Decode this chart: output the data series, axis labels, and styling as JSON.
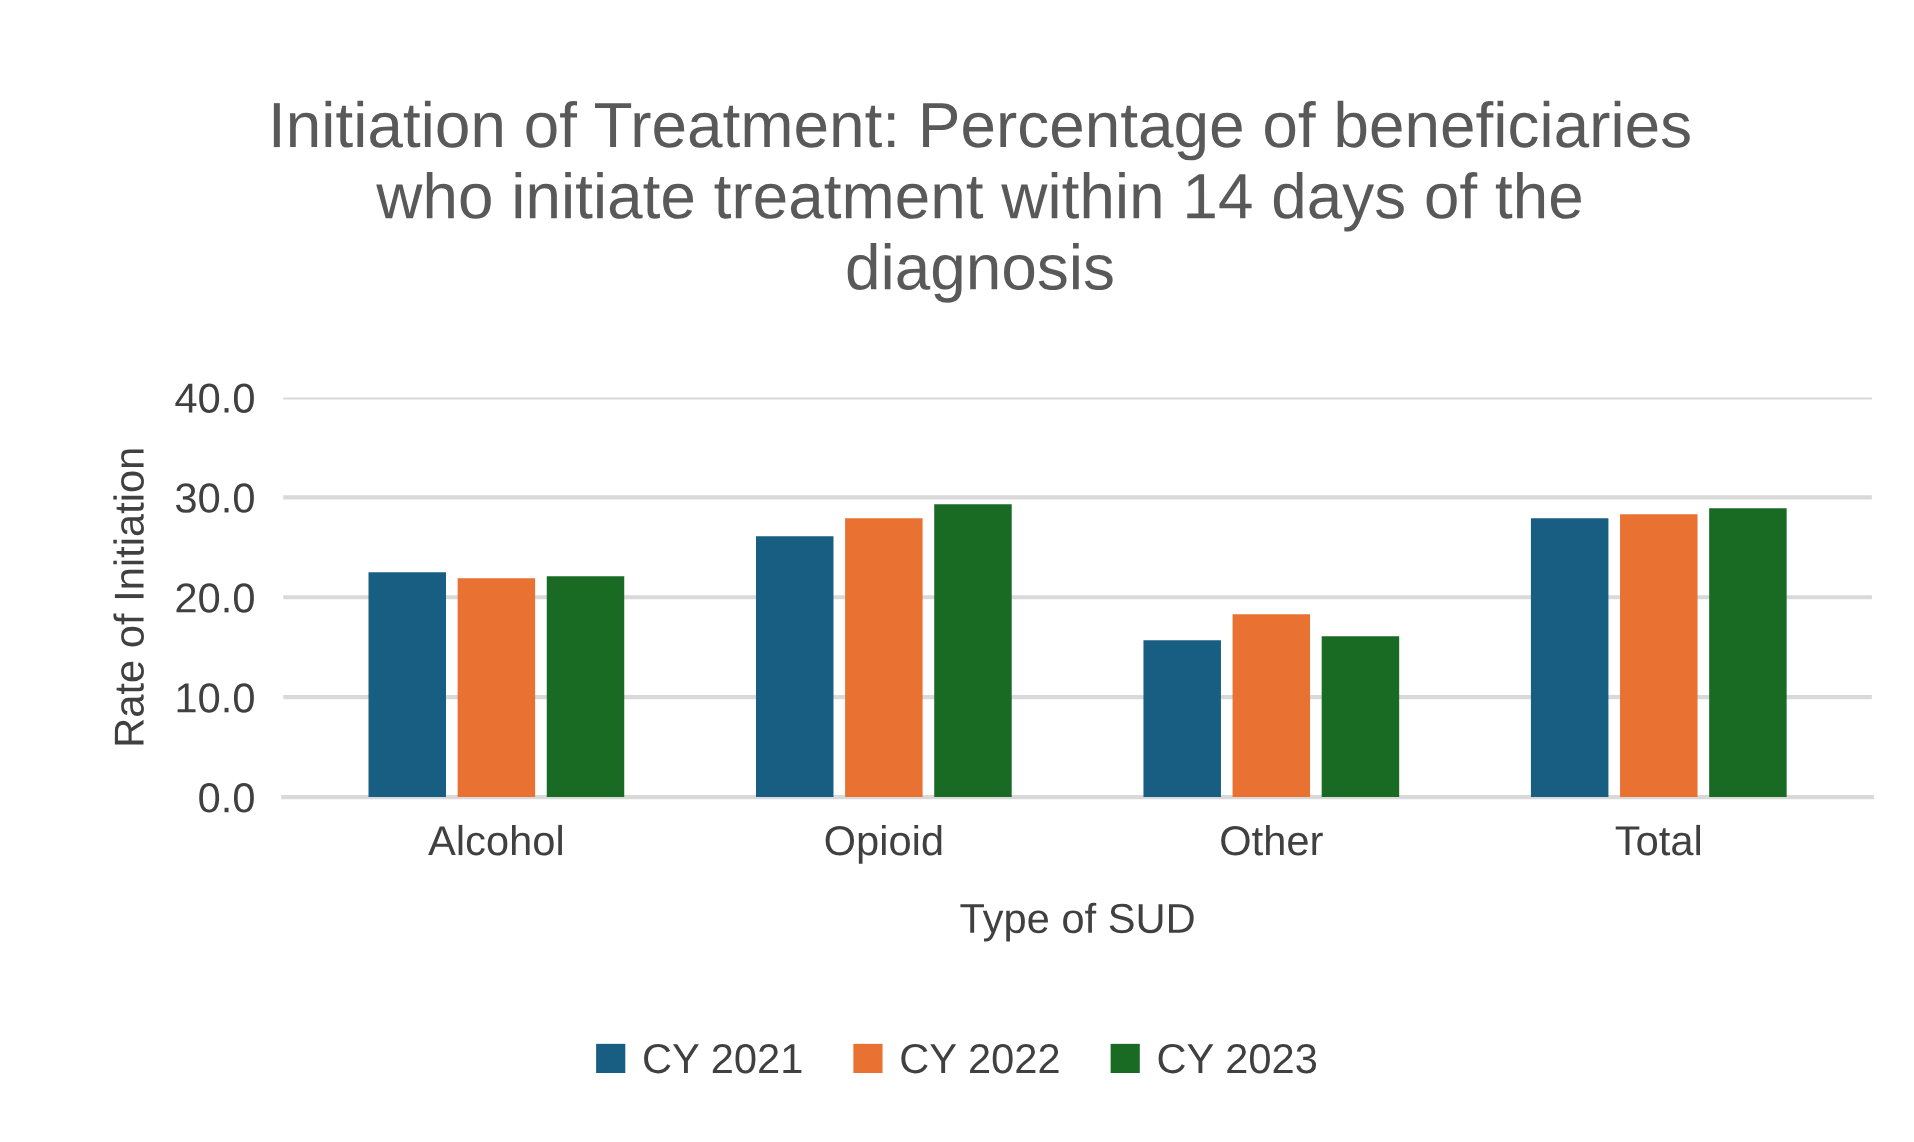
{
  "chart_data": {
    "type": "bar",
    "title": "Initiation of Treatment: Percentage of beneficiaries\nwho initiate treatment within 14 days of the\ndiagnosis",
    "xlabel": "Type of SUD",
    "ylabel": "Rate of Initiation",
    "categories": [
      "Alcohol",
      "Opioid",
      "Other",
      "Total"
    ],
    "series": [
      {
        "name": "CY 2021",
        "color": "#175e82",
        "values": [
          22.5,
          26.1,
          15.7,
          27.9
        ]
      },
      {
        "name": "CY 2022",
        "color": "#e97132",
        "values": [
          21.9,
          27.9,
          18.3,
          28.3
        ]
      },
      {
        "name": "CY 2023",
        "color": "#196b24",
        "values": [
          22.1,
          29.3,
          16.1,
          28.9
        ]
      }
    ],
    "ylim": [
      0,
      40
    ],
    "yticks": [
      {
        "value": 0,
        "label": "0.0"
      },
      {
        "value": 10,
        "label": "10.0"
      },
      {
        "value": 20,
        "label": "20.0"
      },
      {
        "value": 30,
        "label": "30.0"
      },
      {
        "value": 40,
        "label": "40.0"
      }
    ],
    "grid": "y",
    "legend": "bottom"
  }
}
